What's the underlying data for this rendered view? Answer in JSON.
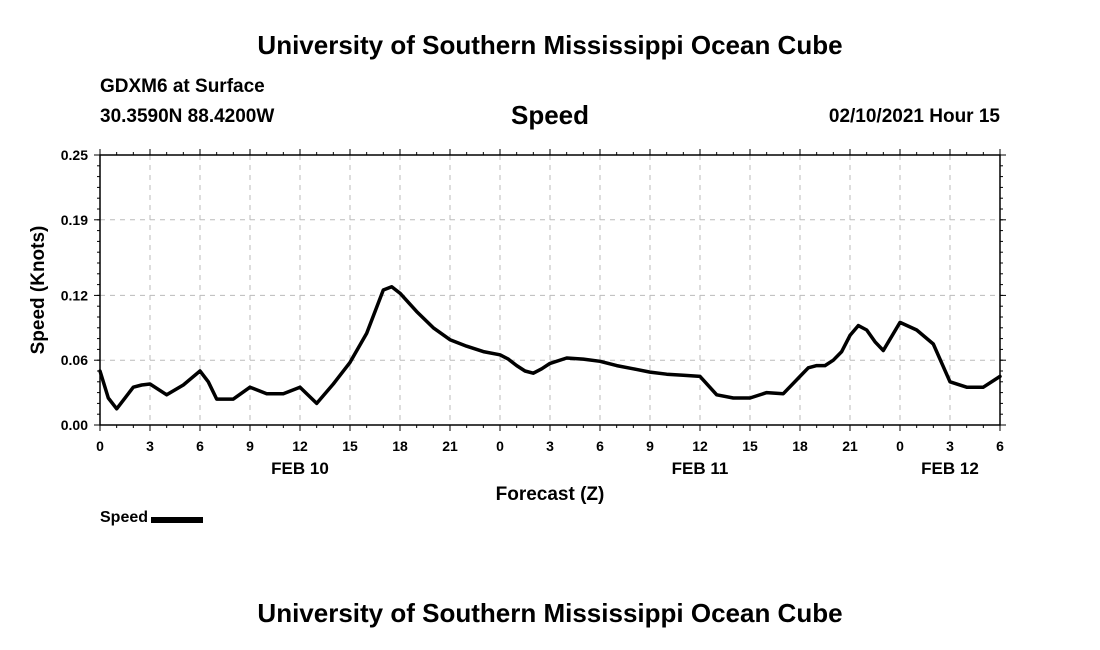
{
  "header": {
    "title": "University of Southern Mississippi Ocean Cube",
    "station": "GDXM6 at Surface",
    "coords": "30.3590N 88.4200W",
    "variable": "Speed",
    "datetime": "02/10/2021 Hour 15"
  },
  "footer": {
    "title": "University of Southern Mississippi Ocean Cube"
  },
  "legend": {
    "label": "Speed"
  },
  "colors": {
    "line": "#000000",
    "grid": "#bbbbbb",
    "axis": "#000000"
  },
  "chart_data": {
    "type": "line",
    "title": "Speed",
    "xlabel": "Forecast (Z)",
    "ylabel": "Speed (Knots)",
    "xlim": [
      0,
      54
    ],
    "ylim": [
      0,
      0.25
    ],
    "yticks": [
      0.0,
      0.06,
      0.12,
      0.19,
      0.25
    ],
    "ytick_labels": [
      "0.00",
      "0.06",
      "0.12",
      "0.19",
      "0.25"
    ],
    "xticks": [
      0,
      3,
      6,
      9,
      12,
      15,
      18,
      21,
      24,
      27,
      30,
      33,
      36,
      39,
      42,
      45,
      48,
      51,
      54
    ],
    "xtick_labels": [
      "0",
      "3",
      "6",
      "9",
      "12",
      "15",
      "18",
      "21",
      "0",
      "3",
      "6",
      "9",
      "12",
      "15",
      "18",
      "21",
      "0",
      "3",
      "6"
    ],
    "date_labels": [
      {
        "x": 12,
        "label": "FEB 10"
      },
      {
        "x": 36,
        "label": "FEB 11"
      },
      {
        "x": 51,
        "label": "FEB 12"
      }
    ],
    "grid": true,
    "legend_position": "bottom-left",
    "series": [
      {
        "name": "Speed",
        "x": [
          0,
          0.5,
          1,
          2,
          2.5,
          3,
          4,
          5,
          6,
          6.5,
          7,
          8,
          9,
          10,
          11,
          12,
          13,
          14,
          15,
          16,
          16.5,
          17,
          17.5,
          18,
          19,
          20,
          21,
          22,
          23,
          24,
          24.5,
          25,
          25.5,
          26,
          26.5,
          27,
          28,
          29,
          30,
          31,
          32,
          33,
          34,
          35,
          36,
          37,
          38,
          39,
          40,
          41,
          42,
          42.5,
          43,
          43.5,
          44,
          44.5,
          45,
          45.5,
          46,
          46.5,
          47,
          48,
          49,
          50,
          51,
          52,
          53,
          54
        ],
        "values": [
          0.05,
          0.025,
          0.015,
          0.035,
          0.037,
          0.038,
          0.028,
          0.037,
          0.05,
          0.04,
          0.024,
          0.024,
          0.035,
          0.029,
          0.029,
          0.035,
          0.02,
          0.038,
          0.058,
          0.085,
          0.105,
          0.125,
          0.128,
          0.122,
          0.105,
          0.09,
          0.079,
          0.073,
          0.068,
          0.065,
          0.061,
          0.055,
          0.05,
          0.048,
          0.052,
          0.057,
          0.062,
          0.061,
          0.059,
          0.055,
          0.052,
          0.049,
          0.047,
          0.046,
          0.045,
          0.028,
          0.025,
          0.025,
          0.03,
          0.029,
          0.045,
          0.053,
          0.055,
          0.055,
          0.06,
          0.068,
          0.083,
          0.092,
          0.088,
          0.077,
          0.069,
          0.095,
          0.088,
          0.075,
          0.04,
          0.035,
          0.035,
          0.045
        ]
      }
    ]
  }
}
